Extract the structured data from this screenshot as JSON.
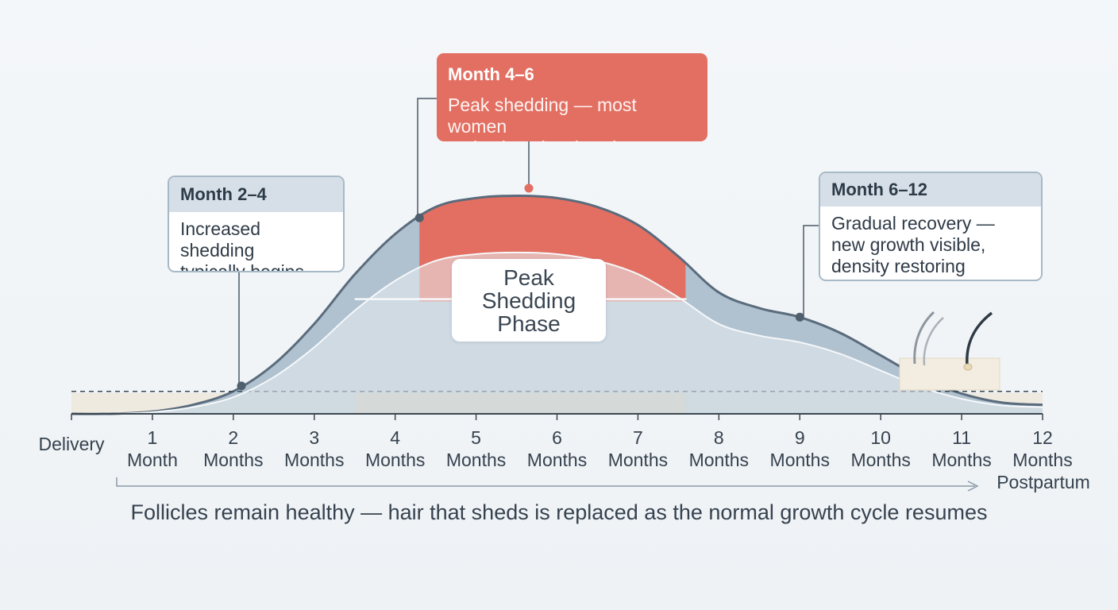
{
  "chart_data": {
    "type": "area",
    "title": "",
    "xlabel": "",
    "ylabel": "",
    "x": [
      0,
      0.5,
      1,
      1.5,
      2,
      2.5,
      3,
      3.5,
      4,
      4.5,
      5,
      5.5,
      6,
      6.5,
      7,
      7.5,
      8,
      8.5,
      9,
      9.5,
      10,
      10.5,
      11,
      11.5,
      12
    ],
    "xlim": [
      0,
      12
    ],
    "ylim": [
      0,
      100
    ],
    "grid": false,
    "series": [
      {
        "values": [
          0,
          0,
          1,
          4,
          10,
          22,
          40,
          62,
          80,
          92,
          96,
          97,
          96,
          92,
          84,
          70,
          54,
          47,
          43,
          36,
          26,
          16,
          9,
          5,
          4
        ]
      }
    ],
    "baseline_value": 10,
    "highlight_band": {
      "from": 4.3,
      "to": 7,
      "label": "Peak\nShedding\nPhase",
      "color": "#e26f62"
    },
    "x_ticks": [
      {
        "x": 0,
        "label": "Delivery"
      },
      {
        "x": 1,
        "label": "1\nMonth"
      },
      {
        "x": 2,
        "label": "2\nMonths"
      },
      {
        "x": 3,
        "label": "3\nMonths"
      },
      {
        "x": 4,
        "label": "4\nMonths"
      },
      {
        "x": 5,
        "label": "5\nMonths"
      },
      {
        "x": 6,
        "label": "6\nMonths"
      },
      {
        "x": 7,
        "label": "7\nMonths"
      },
      {
        "x": 8,
        "label": "8\nMonths"
      },
      {
        "x": 9,
        "label": "9\nMonths"
      },
      {
        "x": 10,
        "label": "10\nMonths"
      },
      {
        "x": 11,
        "label": "11\nMonths"
      },
      {
        "x": 12,
        "label": "12\nMonths\nPostpartum"
      }
    ],
    "annotations": [
      {
        "title": "Month 2–4",
        "text": "Increased shedding\ntypically begins",
        "x": 2.1
      },
      {
        "title": "Month 4–6",
        "text": "Peak shedding — most women\nnotice heaviest loss here",
        "x": 4.3
      },
      {
        "title": "Month 6–12",
        "text": "Gradual recovery —\nnew growth visible,\ndensity restoring",
        "x": 9
      }
    ],
    "footnote": "Follicles remain healthy — hair that sheds is replaced as the normal growth cycle resumes",
    "colors": {
      "curve": "#5a6b7c",
      "fill": "#a9bdcb",
      "peak": "#e26f62",
      "base": "#efe8dc"
    }
  }
}
